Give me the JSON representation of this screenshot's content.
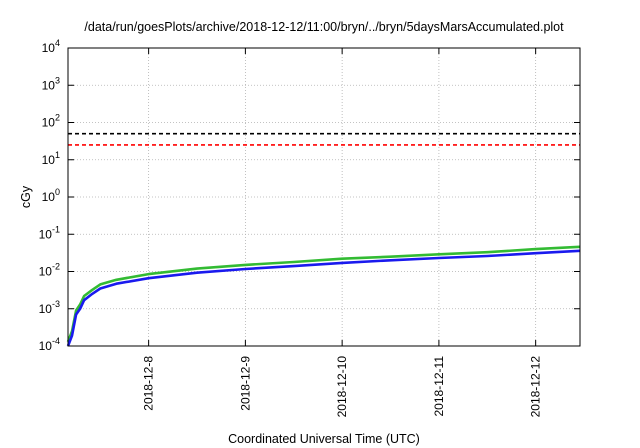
{
  "chart_data": {
    "type": "line",
    "title": "/data/run/goesPlots/archive/2018-12-12/11:00/bryn/../bryn/5daysMarsAccumulated.plot",
    "xlabel": "Coordinated Universal Time (UTC)",
    "ylabel": "cGy",
    "y_scale": "log",
    "ylim": [
      0.0001,
      10000
    ],
    "xlim": [
      "2018-12-07T04:00",
      "2018-12-12T11:00"
    ],
    "grid": true,
    "legend": "none",
    "y_ticks": [
      {
        "value": 0.0001,
        "base": "10",
        "exp": "-4"
      },
      {
        "value": 0.001,
        "base": "10",
        "exp": "-3"
      },
      {
        "value": 0.01,
        "base": "10",
        "exp": "-2"
      },
      {
        "value": 0.1,
        "base": "10",
        "exp": "-1"
      },
      {
        "value": 1,
        "base": "10",
        "exp": "0"
      },
      {
        "value": 10,
        "base": "10",
        "exp": "1"
      },
      {
        "value": 100,
        "base": "10",
        "exp": "2"
      },
      {
        "value": 1000,
        "base": "10",
        "exp": "3"
      },
      {
        "value": 10000,
        "base": "10",
        "exp": "4"
      }
    ],
    "x_ticks": [
      "2018-12-8",
      "2018-12-9",
      "2018-12-10",
      "2018-12-11",
      "2018-12-12"
    ],
    "x_tick_dates": [
      "2018-12-08T00:00",
      "2018-12-09T00:00",
      "2018-12-10T00:00",
      "2018-12-11T00:00",
      "2018-12-12T00:00"
    ],
    "thresholds": [
      {
        "value": 50,
        "color": "#000000",
        "style": "dashed"
      },
      {
        "value": 25,
        "color": "#ff0000",
        "style": "dashed"
      }
    ],
    "series": [
      {
        "color": "#33bb33",
        "x": [
          "2018-12-07T04:00",
          "2018-12-07T05:00",
          "2018-12-07T06:00",
          "2018-12-07T07:00",
          "2018-12-07T08:00",
          "2018-12-07T10:00",
          "2018-12-07T12:00",
          "2018-12-07T16:00",
          "2018-12-08T00:00",
          "2018-12-08T12:00",
          "2018-12-09T00:00",
          "2018-12-09T12:00",
          "2018-12-10T00:00",
          "2018-12-10T12:00",
          "2018-12-11T00:00",
          "2018-12-11T12:00",
          "2018-12-12T00:00",
          "2018-12-12T11:00"
        ],
        "values": [
          0.00013,
          0.00025,
          0.0009,
          0.0013,
          0.0022,
          0.0032,
          0.0045,
          0.006,
          0.0085,
          0.012,
          0.015,
          0.018,
          0.022,
          0.025,
          0.029,
          0.033,
          0.04,
          0.046
        ]
      },
      {
        "color": "#1a1aee",
        "x": [
          "2018-12-07T04:00",
          "2018-12-07T05:00",
          "2018-12-07T06:00",
          "2018-12-07T07:00",
          "2018-12-07T08:00",
          "2018-12-07T10:00",
          "2018-12-07T12:00",
          "2018-12-07T16:00",
          "2018-12-08T00:00",
          "2018-12-08T12:00",
          "2018-12-09T00:00",
          "2018-12-09T12:00",
          "2018-12-10T00:00",
          "2018-12-10T12:00",
          "2018-12-11T00:00",
          "2018-12-11T12:00",
          "2018-12-12T00:00",
          "2018-12-12T11:00"
        ],
        "values": [
          0.0001,
          0.00019,
          0.0007,
          0.001,
          0.0017,
          0.0025,
          0.0035,
          0.0047,
          0.0066,
          0.0093,
          0.0117,
          0.014,
          0.017,
          0.02,
          0.023,
          0.026,
          0.031,
          0.036
        ]
      }
    ]
  }
}
